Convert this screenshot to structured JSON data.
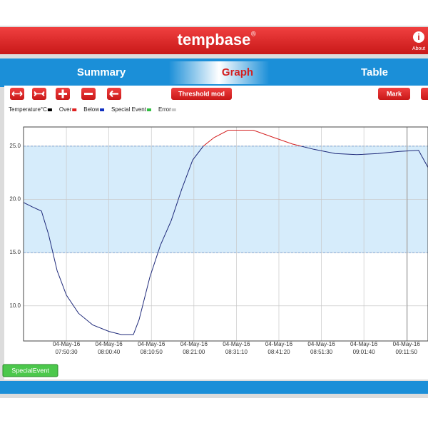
{
  "header": {
    "logo": "tempbase",
    "mark": "®",
    "about": "About"
  },
  "tabs": [
    "Summary",
    "Graph",
    "Table"
  ],
  "active_tab": 1,
  "toolbar": {
    "threshold": "Threshold mod",
    "mark": "Mark"
  },
  "chart_data": {
    "type": "line",
    "legend": [
      {
        "name": "Temperature°C",
        "color": "#000000"
      },
      {
        "name": "Over",
        "color": "#e02020"
      },
      {
        "name": "Below",
        "color": "#1030c0"
      },
      {
        "name": "Special Event",
        "color": "#30c040"
      },
      {
        "name": "Error",
        "color": "#c8c8c8"
      }
    ],
    "x": [
      "07:40:16",
      "07:42:19",
      "07:44:32",
      "07:46:14",
      "07:48:17",
      "07:50:30",
      "07:53:24",
      "07:56:49",
      "08:00:40",
      "08:03:38",
      "08:06:32",
      "08:07:54",
      "08:10:28",
      "08:13:00",
      "08:15:34",
      "08:18:08",
      "08:20:42",
      "08:23:15",
      "08:25:49",
      "08:29:13",
      "08:32:38",
      "08:35:12",
      "08:39:27",
      "08:44:34",
      "08:49:41",
      "08:54:48",
      "08:59:55",
      "09:05:02",
      "09:10:09",
      "09:14:45",
      "09:17:00"
    ],
    "series": [
      {
        "color": "#1f2a7a",
        "values": [
          19.7,
          19.3,
          18.9,
          16.7,
          13.3,
          11.0,
          9.3,
          8.2,
          7.6,
          7.3,
          7.3,
          8.7,
          12.7,
          15.7,
          18.0,
          21.0,
          23.7,
          25.0,
          25.8,
          26.5,
          26.5,
          26.5,
          25.9,
          25.2,
          24.7,
          24.3,
          24.2,
          24.3,
          24.5,
          24.6,
          23.0
        ]
      }
    ],
    "over_color": "#d42020",
    "thresholds": [
      15,
      25
    ],
    "band_color": "#d6ecfb",
    "xlim": [
      "07:40:15",
      "09:17:00"
    ],
    "xticks": [
      {
        "date": "04-May-16",
        "time": "07:50:30"
      },
      {
        "date": "04-May-16",
        "time": "08:00:40"
      },
      {
        "date": "04-May-16",
        "time": "08:10:50"
      },
      {
        "date": "04-May-16",
        "time": "08:21:00"
      },
      {
        "date": "04-May-16",
        "time": "08:31:10"
      },
      {
        "date": "04-May-16",
        "time": "08:41:20"
      },
      {
        "date": "04-May-16",
        "time": "08:51:30"
      },
      {
        "date": "04-May-16",
        "time": "09:01:40"
      },
      {
        "date": "04-May-16",
        "time": "09:11:50"
      }
    ],
    "ylim": [
      6.7,
      26.8
    ],
    "yticks": [
      {
        "value": 10,
        "label": "10.0"
      },
      {
        "value": 15,
        "label": "15.0"
      },
      {
        "value": 20,
        "label": "20.0"
      },
      {
        "value": 25,
        "label": "25.0"
      }
    ],
    "grid": true
  },
  "footer": {
    "button": "SpecialEvent"
  }
}
